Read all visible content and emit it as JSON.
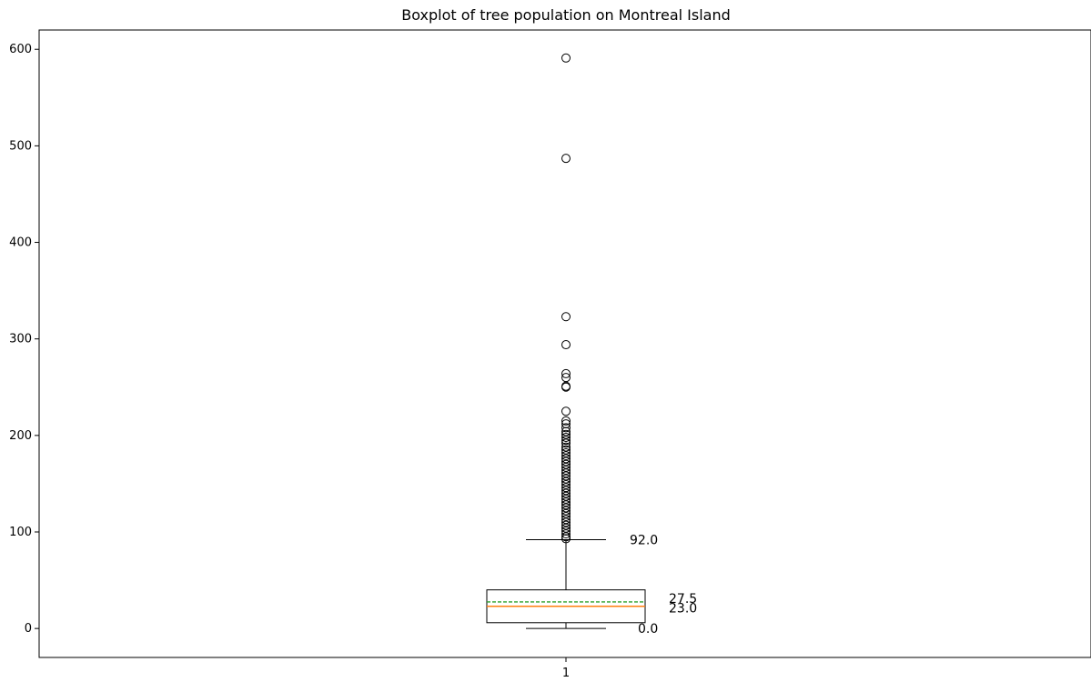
{
  "chart_data": {
    "type": "boxplot",
    "title": "Boxplot of tree population on Montreal Island",
    "xlabel": "",
    "ylabel": "",
    "categories": [
      "1"
    ],
    "ylim": [
      -30,
      620
    ],
    "yticks": [
      0,
      100,
      200,
      300,
      400,
      500,
      600
    ],
    "grid": false,
    "box": {
      "whisker_low": 0,
      "q1": 6,
      "median": 23.0,
      "mean": 27.5,
      "q3": 40,
      "whisker_high": 92.0
    },
    "annotations": [
      {
        "text": "92.0",
        "value": 92.0
      },
      {
        "text": "27.5",
        "value": 27.5
      },
      {
        "text": "23.0",
        "value": 23.0
      },
      {
        "text": "0.0",
        "value": 0.0
      }
    ],
    "outliers": [
      591,
      487,
      323,
      294,
      264,
      260,
      251,
      250,
      225,
      215,
      212,
      208,
      204,
      201,
      198,
      195,
      192,
      188,
      185,
      182,
      179,
      176,
      173,
      170,
      167,
      164,
      161,
      158,
      155,
      152,
      149,
      146,
      143,
      140,
      137,
      134,
      131,
      128,
      125,
      122,
      119,
      116,
      113,
      110,
      107,
      104,
      101,
      98,
      95,
      93
    ],
    "colors": {
      "median": "#ff7f0e",
      "mean": "#2ca02c",
      "box": "#000000"
    }
  }
}
